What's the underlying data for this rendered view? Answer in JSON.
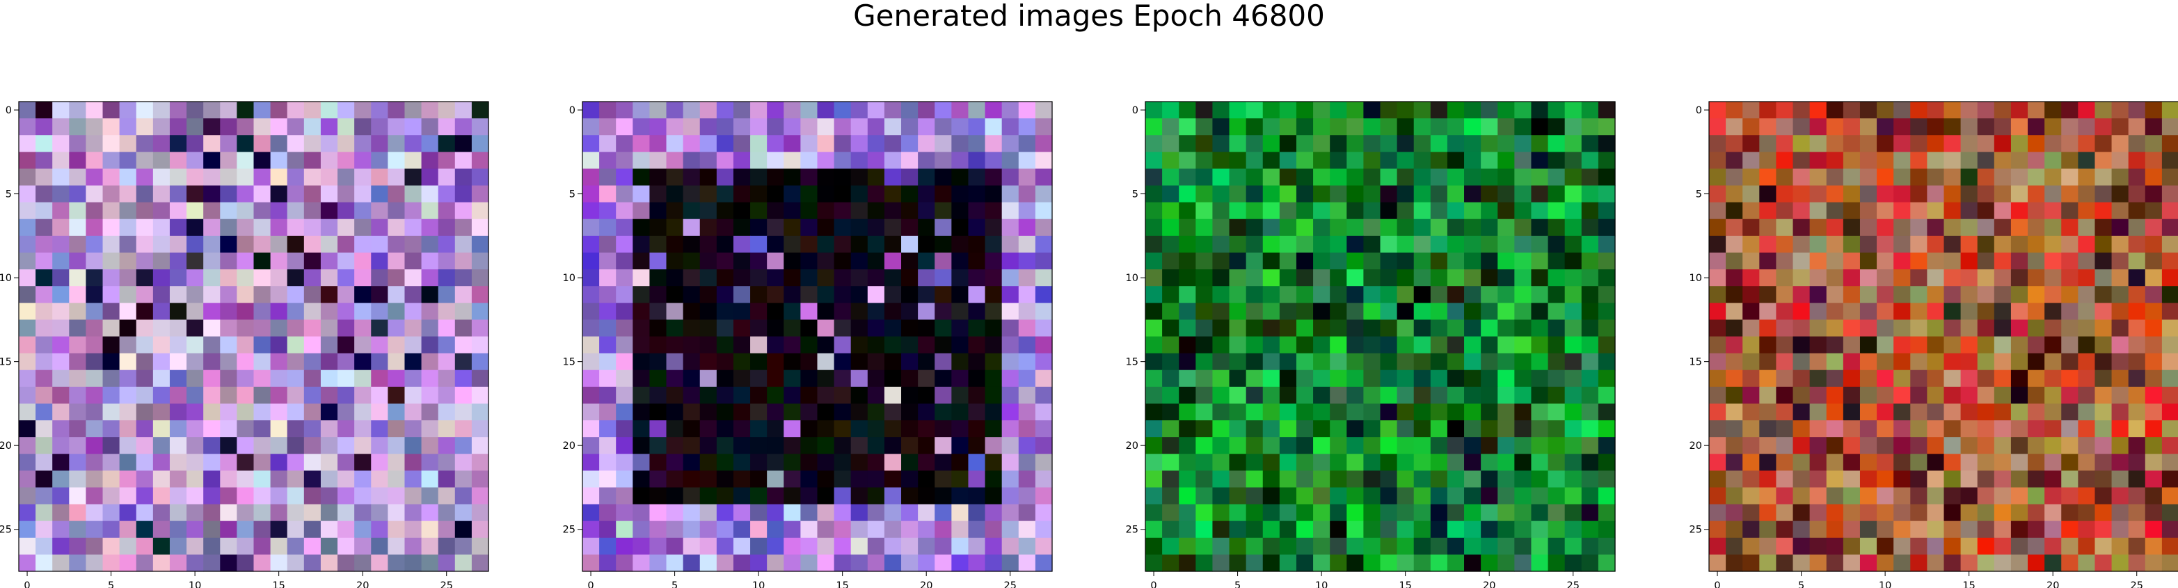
{
  "title": "Generated images Epoch 46800",
  "chart_data": [
    {
      "type": "heatmap",
      "grid_size": 28,
      "xticks": [
        0,
        5,
        10,
        15,
        20,
        25
      ],
      "yticks": [
        0,
        5,
        10,
        15,
        20,
        25
      ],
      "xlim": [
        -0.5,
        27.5
      ],
      "ylim": [
        27.5,
        -0.5
      ],
      "dominant_colors": [
        "#c9a6d8",
        "#9a7fc8",
        "#d7b6e2",
        "#7a55a8",
        "#e0cde8",
        "#8e6cb8",
        "#1a0d2e"
      ]
    },
    {
      "type": "heatmap",
      "grid_size": 28,
      "xticks": [
        0,
        5,
        10,
        15,
        20,
        25
      ],
      "yticks": [
        0,
        5,
        10,
        15,
        20,
        25
      ],
      "xlim": [
        -0.5,
        27.5
      ],
      "ylim": [
        27.5,
        -0.5
      ],
      "dominant_colors": [
        "#b58fd8",
        "#8a5cc8",
        "#6a4fc0",
        "#d9c6ea",
        "#0b0410",
        "#14091f",
        "#0a0612"
      ]
    },
    {
      "type": "heatmap",
      "grid_size": 28,
      "xticks": [
        0,
        5,
        10,
        15,
        20,
        25
      ],
      "yticks": [
        0,
        5,
        10,
        15,
        20,
        25
      ],
      "xlim": [
        -0.5,
        27.5
      ],
      "ylim": [
        27.5,
        -0.5
      ],
      "dominant_colors": [
        "#0a7a2a",
        "#13a63a",
        "#0c5a20",
        "#1fc84a",
        "#083a14",
        "#2e8a4a",
        "#041a08"
      ]
    },
    {
      "type": "heatmap",
      "grid_size": 28,
      "xticks": [
        0,
        5,
        10,
        15,
        20,
        25
      ],
      "yticks": [
        0,
        5,
        10,
        15,
        20,
        25
      ],
      "xlim": [
        -0.5,
        27.5
      ],
      "ylim": [
        27.5,
        -0.5
      ],
      "dominant_colors": [
        "#8a5a3a",
        "#c8643a",
        "#d83020",
        "#a08050",
        "#6a2a20",
        "#b89070",
        "#3a1a10"
      ]
    }
  ]
}
